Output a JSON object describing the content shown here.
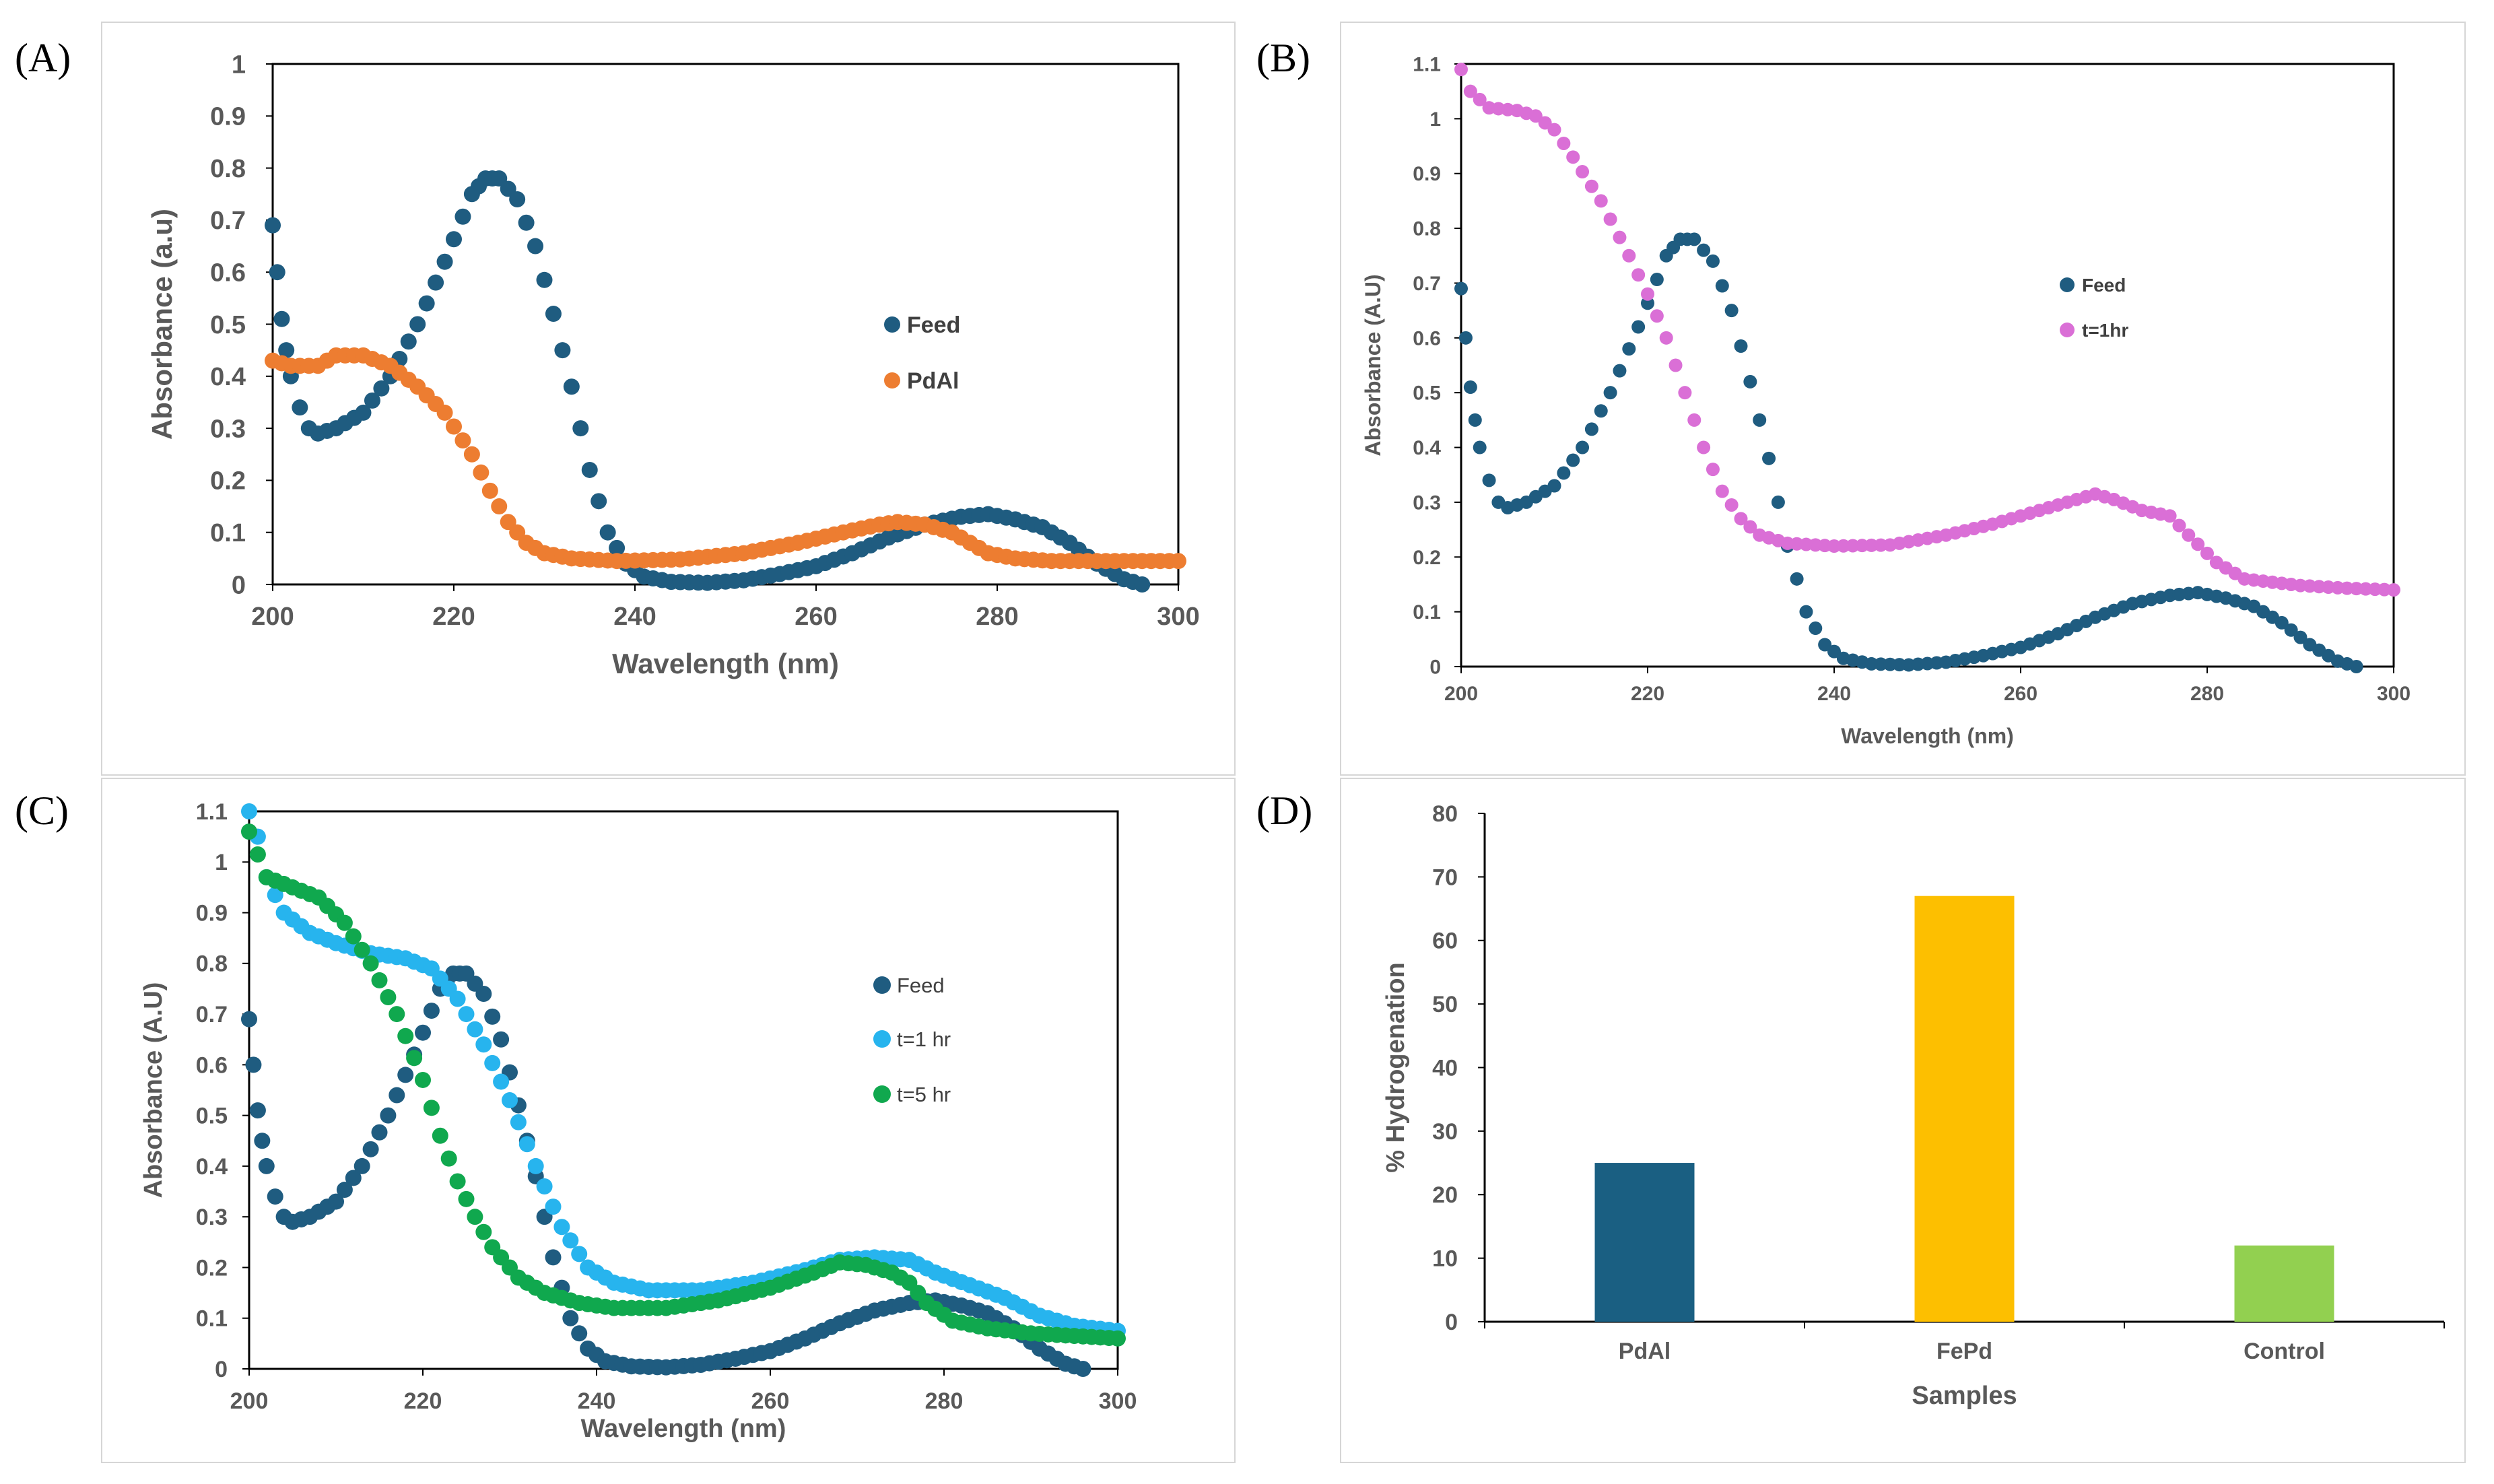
{
  "panel_labels": [
    "(A)",
    "(B)",
    "(C)",
    "(D)"
  ],
  "colors": {
    "feed": "#1F5C80",
    "pdal": "#ED7D31",
    "pink": "#DA6FD6",
    "cyan": "#27B4EE",
    "green": "#10A84E",
    "bar_pdal": "#1A5F82",
    "bar_fepd": "#FDBF00",
    "bar_control": "#92D050"
  },
  "chart_data": [
    {
      "type": "scatter",
      "panel": "(A)",
      "title": "",
      "xlabel": "Wavelength (nm)",
      "ylabel": "Absorbance (a.u)",
      "xlim": [
        200,
        300
      ],
      "ylim": [
        0,
        1
      ],
      "xticks": [
        200,
        220,
        240,
        260,
        280,
        300
      ],
      "yticks": [
        0,
        0.1,
        0.2,
        0.3,
        0.4,
        0.5,
        0.6,
        0.7,
        0.8,
        0.9,
        1
      ],
      "series": [
        {
          "name": "Feed",
          "color_key": "feed",
          "points": [
            [
              200,
              0.69
            ],
            [
              200.5,
              0.6
            ],
            [
              201,
              0.51
            ],
            [
              201.5,
              0.45
            ],
            [
              202,
              0.4
            ],
            [
              203,
              0.34
            ],
            [
              204,
              0.3
            ],
            [
              205,
              0.29
            ],
            [
              207,
              0.3
            ],
            [
              210,
              0.33
            ],
            [
              213,
              0.4
            ],
            [
              216,
              0.5
            ],
            [
              219,
              0.62
            ],
            [
              222,
              0.75
            ],
            [
              223.5,
              0.78
            ],
            [
              225,
              0.78
            ],
            [
              227,
              0.74
            ],
            [
              229,
              0.65
            ],
            [
              231,
              0.52
            ],
            [
              233,
              0.38
            ],
            [
              235,
              0.22
            ],
            [
              237,
              0.1
            ],
            [
              239,
              0.04
            ],
            [
              241,
              0.015
            ],
            [
              244,
              0.005
            ],
            [
              248,
              0.003
            ],
            [
              252,
              0.008
            ],
            [
              256,
              0.02
            ],
            [
              260,
              0.035
            ],
            [
              264,
              0.06
            ],
            [
              268,
              0.09
            ],
            [
              272,
              0.115
            ],
            [
              276,
              0.13
            ],
            [
              279,
              0.135
            ],
            [
              282,
              0.125
            ],
            [
              285,
              0.11
            ],
            [
              288,
              0.08
            ],
            [
              291,
              0.04
            ],
            [
              294,
              0.01
            ],
            [
              296,
              0
            ]
          ]
        },
        {
          "name": "PdAl",
          "color_key": "pdal",
          "points": [
            [
              200,
              0.43
            ],
            [
              202,
              0.42
            ],
            [
              205,
              0.42
            ],
            [
              207,
              0.44
            ],
            [
              210,
              0.44
            ],
            [
              213,
              0.42
            ],
            [
              216,
              0.38
            ],
            [
              219,
              0.33
            ],
            [
              222,
              0.25
            ],
            [
              224,
              0.18
            ],
            [
              226,
              0.12
            ],
            [
              228,
              0.08
            ],
            [
              230,
              0.06
            ],
            [
              233,
              0.05
            ],
            [
              238,
              0.045
            ],
            [
              245,
              0.048
            ],
            [
              252,
              0.06
            ],
            [
              258,
              0.08
            ],
            [
              263,
              0.1
            ],
            [
              267,
              0.115
            ],
            [
              269,
              0.12
            ],
            [
              272,
              0.115
            ],
            [
              275,
              0.1
            ],
            [
              277,
              0.08
            ],
            [
              279,
              0.06
            ],
            [
              282,
              0.05
            ],
            [
              286,
              0.045
            ],
            [
              292,
              0.045
            ],
            [
              300,
              0.045
            ]
          ]
        }
      ],
      "legend": "right"
    },
    {
      "type": "scatter",
      "panel": "(B)",
      "title": "",
      "xlabel": "Wavelength (nm)",
      "ylabel": "Absorbance (A.U)",
      "xlim": [
        200,
        300
      ],
      "ylim": [
        0,
        1.1
      ],
      "xticks": [
        200,
        220,
        240,
        260,
        280,
        300
      ],
      "yticks": [
        0,
        0.1,
        0.2,
        0.3,
        0.4,
        0.5,
        0.6,
        0.7,
        0.8,
        0.9,
        1,
        1.1
      ],
      "series": [
        {
          "name": "Feed",
          "color_key": "feed",
          "points": [
            [
              200,
              0.69
            ],
            [
              200.5,
              0.6
            ],
            [
              201,
              0.51
            ],
            [
              201.5,
              0.45
            ],
            [
              202,
              0.4
            ],
            [
              203,
              0.34
            ],
            [
              204,
              0.3
            ],
            [
              205,
              0.29
            ],
            [
              207,
              0.3
            ],
            [
              210,
              0.33
            ],
            [
              213,
              0.4
            ],
            [
              216,
              0.5
            ],
            [
              219,
              0.62
            ],
            [
              222,
              0.75
            ],
            [
              223.5,
              0.78
            ],
            [
              225,
              0.78
            ],
            [
              227,
              0.74
            ],
            [
              229,
              0.65
            ],
            [
              231,
              0.52
            ],
            [
              233,
              0.38
            ],
            [
              235,
              0.22
            ],
            [
              237,
              0.1
            ],
            [
              239,
              0.04
            ],
            [
              241,
              0.015
            ],
            [
              244,
              0.005
            ],
            [
              248,
              0.003
            ],
            [
              252,
              0.008
            ],
            [
              256,
              0.02
            ],
            [
              260,
              0.035
            ],
            [
              264,
              0.06
            ],
            [
              268,
              0.09
            ],
            [
              272,
              0.115
            ],
            [
              276,
              0.13
            ],
            [
              279,
              0.135
            ],
            [
              282,
              0.125
            ],
            [
              285,
              0.11
            ],
            [
              288,
              0.08
            ],
            [
              291,
              0.04
            ],
            [
              294,
              0.01
            ],
            [
              296,
              0
            ]
          ]
        },
        {
          "name": "t=1hr",
          "color_key": "pink",
          "points": [
            [
              200,
              1.09
            ],
            [
              201,
              1.05
            ],
            [
              203,
              1.02
            ],
            [
              206,
              1.015
            ],
            [
              208,
              1.005
            ],
            [
              210,
              0.98
            ],
            [
              212,
              0.93
            ],
            [
              215,
              0.85
            ],
            [
              218,
              0.75
            ],
            [
              220,
              0.68
            ],
            [
              222,
              0.6
            ],
            [
              224,
              0.5
            ],
            [
              226,
              0.4
            ],
            [
              228,
              0.32
            ],
            [
              230,
              0.27
            ],
            [
              232,
              0.24
            ],
            [
              235,
              0.225
            ],
            [
              240,
              0.22
            ],
            [
              246,
              0.222
            ],
            [
              252,
              0.24
            ],
            [
              257,
              0.26
            ],
            [
              262,
              0.285
            ],
            [
              265,
              0.3
            ],
            [
              268,
              0.315
            ],
            [
              270,
              0.305
            ],
            [
              273,
              0.285
            ],
            [
              276,
              0.275
            ],
            [
              278,
              0.24
            ],
            [
              281,
              0.19
            ],
            [
              284,
              0.16
            ],
            [
              290,
              0.148
            ],
            [
              295,
              0.143
            ],
            [
              300,
              0.14
            ]
          ]
        }
      ],
      "legend": "right"
    },
    {
      "type": "scatter",
      "panel": "(C)",
      "title": "",
      "xlabel": "Wavelength (nm)",
      "ylabel": "Absorbance (A.U)",
      "xlim": [
        200,
        300
      ],
      "ylim": [
        0,
        1.1
      ],
      "xticks": [
        200,
        220,
        240,
        260,
        280,
        300
      ],
      "yticks": [
        0,
        0.1,
        0.2,
        0.3,
        0.4,
        0.5,
        0.6,
        0.7,
        0.8,
        0.9,
        1,
        1.1
      ],
      "series": [
        {
          "name": "Feed",
          "color_key": "feed",
          "points": [
            [
              200,
              0.69
            ],
            [
              200.5,
              0.6
            ],
            [
              201,
              0.51
            ],
            [
              201.5,
              0.45
            ],
            [
              202,
              0.4
            ],
            [
              203,
              0.34
            ],
            [
              204,
              0.3
            ],
            [
              205,
              0.29
            ],
            [
              207,
              0.3
            ],
            [
              210,
              0.33
            ],
            [
              213,
              0.4
            ],
            [
              216,
              0.5
            ],
            [
              219,
              0.62
            ],
            [
              222,
              0.75
            ],
            [
              223.5,
              0.78
            ],
            [
              225,
              0.78
            ],
            [
              227,
              0.74
            ],
            [
              229,
              0.65
            ],
            [
              231,
              0.52
            ],
            [
              233,
              0.38
            ],
            [
              235,
              0.22
            ],
            [
              237,
              0.1
            ],
            [
              239,
              0.04
            ],
            [
              241,
              0.015
            ],
            [
              244,
              0.005
            ],
            [
              248,
              0.003
            ],
            [
              252,
              0.008
            ],
            [
              256,
              0.02
            ],
            [
              260,
              0.035
            ],
            [
              264,
              0.06
            ],
            [
              268,
              0.09
            ],
            [
              272,
              0.115
            ],
            [
              276,
              0.13
            ],
            [
              279,
              0.135
            ],
            [
              282,
              0.125
            ],
            [
              285,
              0.11
            ],
            [
              288,
              0.08
            ],
            [
              291,
              0.04
            ],
            [
              294,
              0.01
            ],
            [
              296,
              0
            ]
          ]
        },
        {
          "name": "t=1 hr",
          "color_key": "cyan",
          "points": [
            [
              200,
              1.1
            ],
            [
              201,
              1.05
            ],
            [
              202,
              0.97
            ],
            [
              204,
              0.9
            ],
            [
              207,
              0.86
            ],
            [
              210,
              0.84
            ],
            [
              214,
              0.82
            ],
            [
              218,
              0.81
            ],
            [
              221,
              0.79
            ],
            [
              224,
              0.73
            ],
            [
              227,
              0.64
            ],
            [
              230,
              0.53
            ],
            [
              233,
              0.4
            ],
            [
              236,
              0.28
            ],
            [
              239,
              0.2
            ],
            [
              242,
              0.17
            ],
            [
              246,
              0.155
            ],
            [
              252,
              0.155
            ],
            [
              258,
              0.17
            ],
            [
              264,
              0.195
            ],
            [
              268,
              0.215
            ],
            [
              272,
              0.22
            ],
            [
              276,
              0.215
            ],
            [
              279,
              0.19
            ],
            [
              283,
              0.165
            ],
            [
              287,
              0.14
            ],
            [
              291,
              0.105
            ],
            [
              295,
              0.085
            ],
            [
              300,
              0.075
            ]
          ]
        },
        {
          "name": "t=5 hr",
          "color_key": "green",
          "points": [
            [
              200,
              1.06
            ],
            [
              202,
              0.97
            ],
            [
              205,
              0.95
            ],
            [
              208,
              0.93
            ],
            [
              211,
              0.88
            ],
            [
              214,
              0.8
            ],
            [
              217,
              0.7
            ],
            [
              220,
              0.57
            ],
            [
              222,
              0.46
            ],
            [
              224,
              0.37
            ],
            [
              226,
              0.3
            ],
            [
              228,
              0.24
            ],
            [
              231,
              0.18
            ],
            [
              234,
              0.15
            ],
            [
              238,
              0.13
            ],
            [
              242,
              0.12
            ],
            [
              248,
              0.12
            ],
            [
              254,
              0.135
            ],
            [
              260,
              0.16
            ],
            [
              265,
              0.19
            ],
            [
              268,
              0.21
            ],
            [
              271,
              0.205
            ],
            [
              274,
              0.19
            ],
            [
              276,
              0.17
            ],
            [
              278,
              0.13
            ],
            [
              281,
              0.095
            ],
            [
              285,
              0.08
            ],
            [
              290,
              0.07
            ],
            [
              295,
              0.065
            ],
            [
              300,
              0.06
            ]
          ]
        }
      ],
      "legend": "right"
    },
    {
      "type": "bar",
      "panel": "(D)",
      "title": "",
      "xlabel": "Samples",
      "ylabel": "% Hydrogenation",
      "categories": [
        "PdAl",
        "FePd",
        "Control"
      ],
      "values": [
        25,
        67,
        12
      ],
      "color_keys": [
        "bar_pdal",
        "bar_fepd",
        "bar_control"
      ],
      "ylim": [
        0,
        80
      ],
      "yticks": [
        0,
        10,
        20,
        30,
        40,
        50,
        60,
        70,
        80
      ]
    }
  ]
}
